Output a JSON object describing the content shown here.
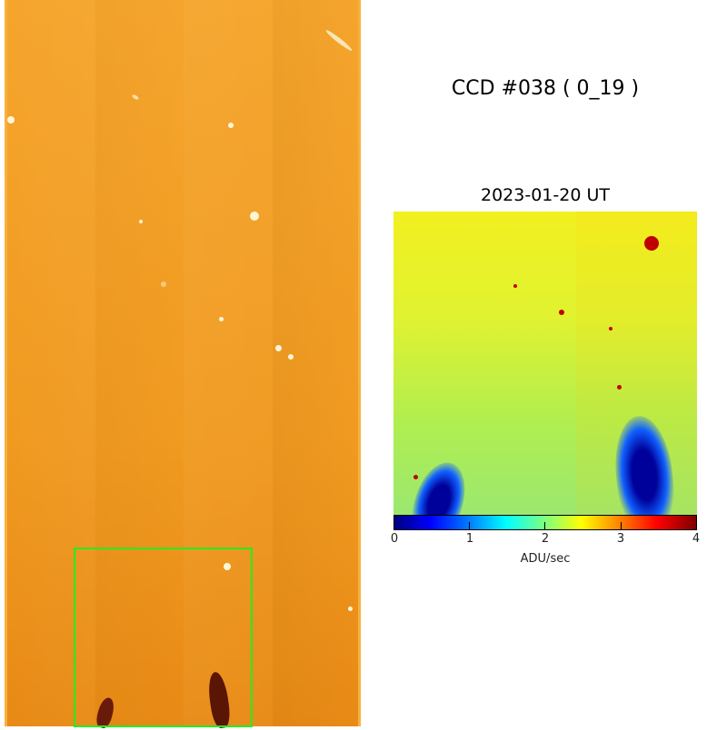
{
  "title": "CCD #038 ( 0_19 )",
  "zoom_panel": {
    "date_label": "2023-01-20 UT"
  },
  "colorbar": {
    "label": "ADU/sec",
    "ticks": [
      "0",
      "1",
      "2",
      "3",
      "4"
    ],
    "range": [
      0,
      4
    ],
    "colormap": "jet"
  },
  "colors": {
    "highlight_box": "#22ee22",
    "ccd_base": "#f09a20"
  }
}
